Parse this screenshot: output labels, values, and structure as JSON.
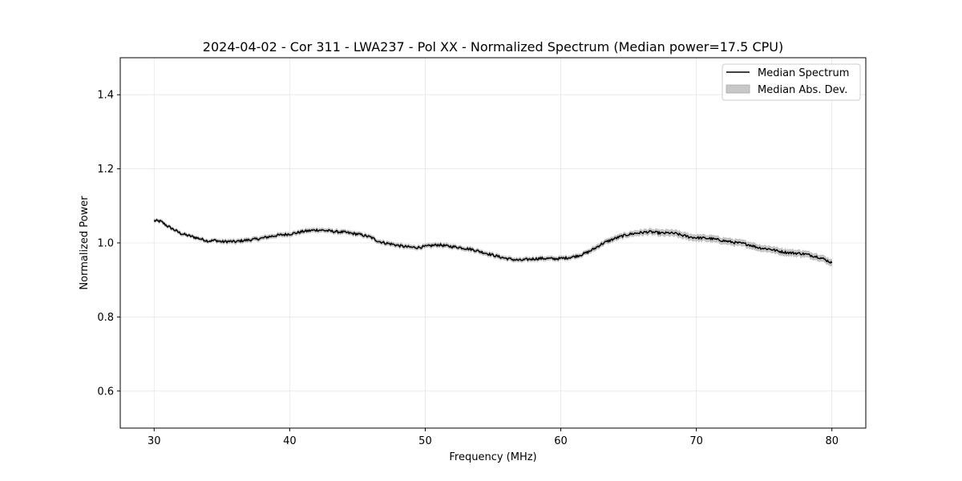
{
  "chart_data": {
    "type": "line",
    "title": "2024-04-02 - Cor 311 - LWA237 - Pol XX - Normalized Spectrum (Median power=17.5 CPU)",
    "xlabel": "Frequency (MHz)",
    "ylabel": "Normalized Power",
    "xlim": [
      27.5,
      82.5
    ],
    "ylim": [
      0.5,
      1.5
    ],
    "xticks": [
      30,
      40,
      50,
      60,
      70,
      80
    ],
    "yticks": [
      0.6,
      0.8,
      1.0,
      1.2,
      1.4
    ],
    "xtick_labels": [
      "30",
      "40",
      "50",
      "60",
      "70",
      "80"
    ],
    "ytick_labels": [
      "0.6",
      "0.8",
      "1.0",
      "1.2",
      "1.4"
    ],
    "grid": true,
    "legend_position": "top-right",
    "legend": [
      "Median Spectrum",
      "Median Abs. Dev."
    ],
    "colors": {
      "line": "#000000",
      "band": "#c8c8c8"
    },
    "series": [
      {
        "name": "Median Spectrum",
        "x": [
          30,
          30.5,
          31,
          31.5,
          32,
          32.5,
          33,
          33.5,
          34,
          34.5,
          35,
          35.5,
          36,
          36.5,
          37,
          37.5,
          38,
          38.5,
          39,
          39.5,
          40,
          40.5,
          41,
          41.5,
          42,
          42.5,
          43,
          43.5,
          44,
          44.5,
          45,
          45.5,
          46,
          46.5,
          47,
          47.5,
          48,
          48.5,
          49,
          49.5,
          50,
          50.5,
          51,
          51.5,
          52,
          52.5,
          53,
          53.5,
          54,
          54.5,
          55,
          55.5,
          56,
          56.5,
          57,
          57.5,
          58,
          58.5,
          59,
          59.5,
          60,
          60.5,
          61,
          61.5,
          62,
          62.5,
          63,
          63.5,
          64,
          64.5,
          65,
          65.5,
          66,
          66.5,
          67,
          67.5,
          68,
          68.5,
          69,
          69.5,
          70,
          70.5,
          71,
          71.5,
          72,
          72.5,
          73,
          73.5,
          74,
          74.5,
          75,
          75.5,
          76,
          76.5,
          77,
          77.5,
          78,
          78.5,
          79,
          79.5,
          80
        ],
        "values": [
          1.06,
          1.058,
          1.045,
          1.035,
          1.025,
          1.02,
          1.015,
          1.01,
          1.005,
          1.007,
          1.003,
          1.004,
          1.003,
          1.006,
          1.008,
          1.01,
          1.013,
          1.017,
          1.02,
          1.022,
          1.024,
          1.027,
          1.031,
          1.033,
          1.035,
          1.034,
          1.032,
          1.03,
          1.029,
          1.026,
          1.024,
          1.02,
          1.015,
          1.005,
          1.0,
          0.997,
          0.993,
          0.99,
          0.988,
          0.988,
          0.99,
          0.993,
          0.995,
          0.992,
          0.99,
          0.988,
          0.985,
          0.982,
          0.977,
          0.972,
          0.967,
          0.962,
          0.958,
          0.955,
          0.953,
          0.955,
          0.957,
          0.958,
          0.958,
          0.957,
          0.958,
          0.96,
          0.963,
          0.968,
          0.975,
          0.985,
          0.997,
          1.005,
          1.012,
          1.018,
          1.023,
          1.026,
          1.028,
          1.03,
          1.028,
          1.026,
          1.027,
          1.025,
          1.02,
          1.016,
          1.014,
          1.013,
          1.012,
          1.009,
          1.006,
          1.003,
          1.0,
          0.998,
          0.994,
          0.988,
          0.985,
          0.983,
          0.978,
          0.975,
          0.973,
          0.972,
          0.97,
          0.966,
          0.962,
          0.955,
          0.946
        ]
      }
    ],
    "mad_band": {
      "name": "Median Abs. Dev.",
      "width": [
        0.004,
        0.004,
        0.004,
        0.004,
        0.004,
        0.004,
        0.004,
        0.004,
        0.004,
        0.004,
        0.005,
        0.005,
        0.005,
        0.005,
        0.005,
        0.005,
        0.005,
        0.005,
        0.005,
        0.005,
        0.005,
        0.005,
        0.005,
        0.005,
        0.005,
        0.005,
        0.005,
        0.005,
        0.005,
        0.005,
        0.005,
        0.005,
        0.005,
        0.005,
        0.005,
        0.005,
        0.005,
        0.005,
        0.005,
        0.005,
        0.005,
        0.005,
        0.005,
        0.005,
        0.005,
        0.005,
        0.005,
        0.005,
        0.005,
        0.005,
        0.005,
        0.005,
        0.005,
        0.005,
        0.005,
        0.005,
        0.005,
        0.005,
        0.005,
        0.005,
        0.005,
        0.005,
        0.005,
        0.005,
        0.005,
        0.006,
        0.006,
        0.006,
        0.006,
        0.006,
        0.006,
        0.007,
        0.007,
        0.007,
        0.007,
        0.008,
        0.008,
        0.008,
        0.008,
        0.008,
        0.008,
        0.008,
        0.008,
        0.008,
        0.008,
        0.008,
        0.008,
        0.008,
        0.008,
        0.008,
        0.008,
        0.008,
        0.008,
        0.008,
        0.008,
        0.008,
        0.008,
        0.008,
        0.008,
        0.008,
        0.008
      ]
    }
  }
}
